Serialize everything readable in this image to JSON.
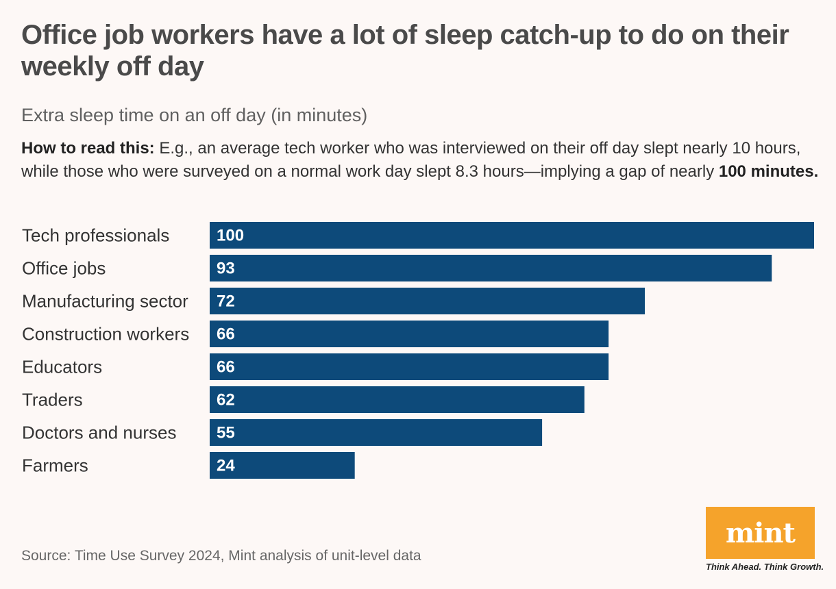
{
  "title": "Office job workers have a lot of sleep catch-up to do on their weekly off day",
  "subtitle": "Extra sleep time on an off day (in minutes)",
  "how_to_read": {
    "lead": "How to read this:",
    "body": " E.g., an average tech worker who was interviewed on their off day slept nearly 10 hours, while those who were surveyed on a normal work day slept 8.3 hours—implying a gap of nearly ",
    "emphasis": "100 minutes."
  },
  "source": "Source: Time Use Survey 2024, Mint analysis of unit-level data",
  "logo": {
    "name": "mint",
    "tagline": "Think Ahead. Think Growth.",
    "color": "#f5a32b"
  },
  "colors": {
    "bar": "#0d4a7a",
    "background": "#fdf8f6"
  },
  "chart_data": {
    "type": "bar",
    "orientation": "horizontal",
    "categories": [
      "Tech professionals",
      "Office jobs",
      "Manufacturing sector",
      "Construction workers",
      "Educators",
      "Traders",
      "Doctors and nurses",
      "Farmers"
    ],
    "values": [
      100,
      93,
      72,
      66,
      66,
      62,
      55,
      24
    ],
    "xlim": [
      0,
      100
    ],
    "title": "",
    "xlabel": "",
    "ylabel": "",
    "grid": false,
    "data_labels": "inside-left"
  }
}
